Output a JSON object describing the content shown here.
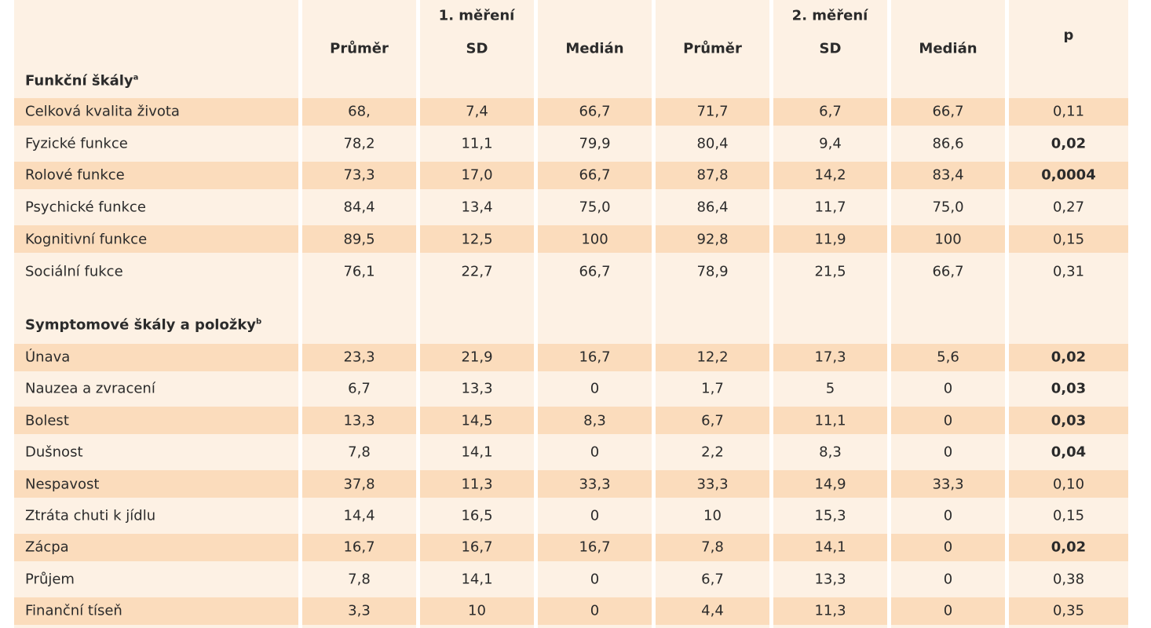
{
  "table": {
    "groups": [
      "1. měření",
      "2. měření"
    ],
    "columns": [
      "Průměr",
      "SD",
      "Medián",
      "Průměr",
      "SD",
      "Medián"
    ],
    "p_header": "p",
    "sections": [
      {
        "title": "Funkční škály",
        "note": "a",
        "rows": [
          {
            "label": "Celková kvalita života",
            "cells": [
              "68,",
              "7,4",
              "66,7",
              "71,7",
              "6,7",
              "66,7"
            ],
            "p": "0,11",
            "p_bold": false
          },
          {
            "label": "Fyzické funkce",
            "cells": [
              "78,2",
              "11,1",
              "79,9",
              "80,4",
              "9,4",
              "86,6"
            ],
            "p": "0,02",
            "p_bold": true
          },
          {
            "label": "Rolové funkce",
            "cells": [
              "73,3",
              "17,0",
              "66,7",
              "87,8",
              "14,2",
              "83,4"
            ],
            "p": "0,0004",
            "p_bold": true
          },
          {
            "label": "Psychické funkce",
            "cells": [
              "84,4",
              "13,4",
              "75,0",
              "86,4",
              "11,7",
              "75,0"
            ],
            "p": "0,27",
            "p_bold": false
          },
          {
            "label": "Kognitivní funkce",
            "cells": [
              "89,5",
              "12,5",
              "100",
              "92,8",
              "11,9",
              "100"
            ],
            "p": "0,15",
            "p_bold": false
          },
          {
            "label": "Sociální fukce",
            "cells": [
              "76,1",
              "22,7",
              "66,7",
              "78,9",
              "21,5",
              "66,7"
            ],
            "p": "0,31",
            "p_bold": false
          }
        ]
      },
      {
        "title": "Symptomové škály a položky",
        "note": "b",
        "rows": [
          {
            "label": "Únava",
            "cells": [
              "23,3",
              "21,9",
              "16,7",
              "12,2",
              "17,3",
              "5,6"
            ],
            "p": "0,02",
            "p_bold": true
          },
          {
            "label": "Nauzea a zvracení",
            "cells": [
              "6,7",
              "13,3",
              "0",
              "1,7",
              "5",
              "0"
            ],
            "p": "0,03",
            "p_bold": true
          },
          {
            "label": "Bolest",
            "cells": [
              "13,3",
              "14,5",
              "8,3",
              "6,7",
              "11,1",
              "0"
            ],
            "p": "0,03",
            "p_bold": true
          },
          {
            "label": "Dušnost",
            "cells": [
              "7,8",
              "14,1",
              "0",
              "2,2",
              "8,3",
              "0"
            ],
            "p": "0,04",
            "p_bold": true
          },
          {
            "label": "Nespavost",
            "cells": [
              "37,8",
              "11,3",
              "33,3",
              "33,3",
              "14,9",
              "33,3"
            ],
            "p": "0,10",
            "p_bold": false
          },
          {
            "label": "Ztráta chuti k jídlu",
            "cells": [
              "14,4",
              "16,5",
              "0",
              "10",
              "15,3",
              "0"
            ],
            "p": "0,15",
            "p_bold": false
          },
          {
            "label": "Zácpa",
            "cells": [
              "16,7",
              "16,7",
              "16,7",
              "7,8",
              "14,1",
              "0"
            ],
            "p": "0,02",
            "p_bold": true
          },
          {
            "label": "Průjem",
            "cells": [
              "7,8",
              "14,1",
              "0",
              "6,7",
              "13,3",
              "0"
            ],
            "p": "0,38",
            "p_bold": false
          },
          {
            "label": "Finanční tíseň",
            "cells": [
              "3,3",
              "10",
              "0",
              "4,4",
              "11,3",
              "0"
            ],
            "p": "0,35",
            "p_bold": false
          }
        ]
      }
    ]
  }
}
